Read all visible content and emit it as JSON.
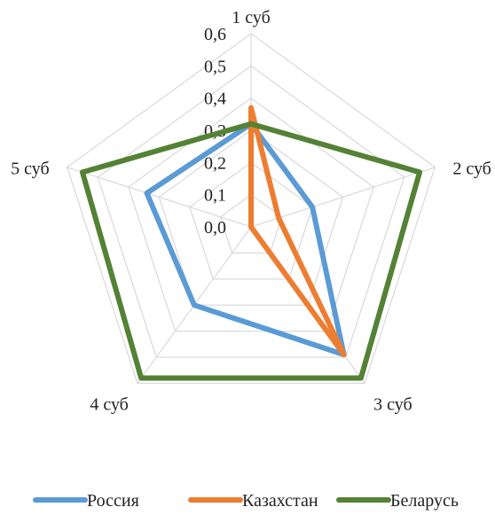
{
  "chart_data": {
    "type": "radar",
    "title": "",
    "categories": [
      "1 суб",
      "2 суб",
      "3 суб",
      "4 суб",
      "5 суб"
    ],
    "rlim": [
      0.0,
      0.6
    ],
    "ticks": [
      "0,0",
      "0,1",
      "0,2",
      "0,3",
      "0,4",
      "0,5",
      "0,6"
    ],
    "grid": true,
    "legend_position": "bottom",
    "series": [
      {
        "name": "Россия",
        "color": "#5b9bd5",
        "values": [
          0.32,
          0.2,
          0.49,
          0.3,
          0.34
        ]
      },
      {
        "name": "Казахстан",
        "color": "#ed7d31",
        "values": [
          0.37,
          0.09,
          0.49,
          0.0,
          0.0
        ]
      },
      {
        "name": "Беларусь",
        "color": "#548235",
        "values": [
          0.32,
          0.55,
          0.58,
          0.58,
          0.55
        ]
      }
    ]
  }
}
